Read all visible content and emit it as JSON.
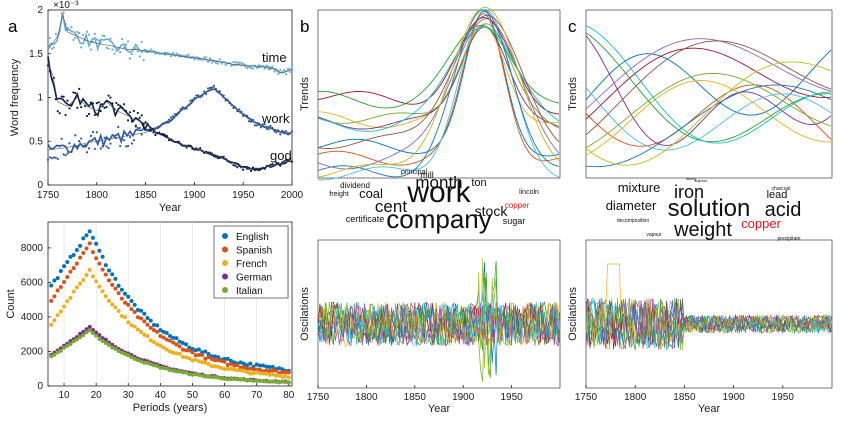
{
  "chart_data": [
    {
      "id": "a-top",
      "type": "line",
      "panel_label": "a",
      "xlabel": "Year",
      "ylabel": "Word frequency",
      "y_exponent": "×10⁻³",
      "xlim": [
        1750,
        2000
      ],
      "ylim": [
        0,
        2
      ],
      "xticks": [
        1750,
        1800,
        1850,
        1900,
        1950,
        2000
      ],
      "yticks": [
        0,
        0.5,
        1,
        1.5,
        2
      ],
      "ytick_labels": [
        "0",
        "0.5",
        "1",
        "1.5",
        "2"
      ],
      "series": [
        {
          "name": "time",
          "color": "#6baed6",
          "x": [
            1750,
            1760,
            1765,
            1770,
            1780,
            1790,
            1800,
            1810,
            1820,
            1830,
            1840,
            1850,
            1860,
            1870,
            1880,
            1890,
            1900,
            1910,
            1920,
            1930,
            1940,
            1950,
            1960,
            1970,
            1980,
            1990,
            2000
          ],
          "y": [
            1.55,
            1.7,
            1.95,
            1.75,
            1.7,
            1.65,
            1.62,
            1.6,
            1.58,
            1.55,
            1.55,
            1.53,
            1.52,
            1.5,
            1.48,
            1.47,
            1.45,
            1.44,
            1.42,
            1.4,
            1.38,
            1.37,
            1.36,
            1.35,
            1.33,
            1.28,
            1.32
          ]
        },
        {
          "name": "work",
          "color": "#2c5aa0",
          "x": [
            1750,
            1770,
            1790,
            1810,
            1830,
            1850,
            1870,
            1880,
            1890,
            1900,
            1910,
            1920,
            1930,
            1940,
            1950,
            1960,
            1970,
            1980,
            1990,
            2000
          ],
          "y": [
            0.4,
            0.43,
            0.48,
            0.52,
            0.56,
            0.6,
            0.7,
            0.78,
            0.88,
            0.98,
            1.05,
            1.12,
            1.0,
            0.9,
            0.8,
            0.72,
            0.68,
            0.64,
            0.6,
            0.6
          ]
        },
        {
          "name": "god",
          "color": "#0d1f4a",
          "x": [
            1750,
            1755,
            1760,
            1770,
            1780,
            1790,
            1800,
            1810,
            1820,
            1830,
            1840,
            1850,
            1860,
            1870,
            1880,
            1890,
            1900,
            1910,
            1920,
            1930,
            1940,
            1950,
            1960,
            1970,
            1980,
            1990,
            2000
          ],
          "y": [
            1.4,
            1.25,
            0.95,
            0.9,
            1.0,
            0.9,
            0.85,
            0.95,
            0.85,
            0.8,
            0.75,
            0.7,
            0.6,
            0.55,
            0.5,
            0.45,
            0.42,
            0.38,
            0.35,
            0.3,
            0.25,
            0.2,
            0.18,
            0.2,
            0.22,
            0.25,
            0.28
          ]
        }
      ]
    },
    {
      "id": "a-bottom",
      "type": "scatter",
      "xlabel": "Periods (years)",
      "ylabel": "Count",
      "xlim": [
        5,
        81
      ],
      "ylim": [
        0,
        9500
      ],
      "xticks": [
        10,
        20,
        30,
        40,
        50,
        60,
        70,
        80
      ],
      "yticks": [
        0,
        2000,
        4000,
        6000,
        8000
      ],
      "legend_position": "top-right",
      "series": [
        {
          "name": "English",
          "color": "#0072bd",
          "peak": 9000,
          "start": 5800,
          "end": 600
        },
        {
          "name": "Spanish",
          "color": "#d95319",
          "peak": 8200,
          "start": 5000,
          "end": 450
        },
        {
          "name": "French",
          "color": "#edb120",
          "peak": 6700,
          "start": 3600,
          "end": 300
        },
        {
          "name": "German",
          "color": "#7e2f8e",
          "peak": 3400,
          "start": 1800,
          "end": 100
        },
        {
          "name": "Italian",
          "color": "#77ac30",
          "peak": 3200,
          "start": 1700,
          "end": 80
        }
      ],
      "peak_x": 18
    },
    {
      "id": "b",
      "type": "line",
      "panel_label": "b",
      "xlabel": "Year",
      "ylabel_top": "Trends",
      "ylabel_bottom": "Oscilations",
      "xlim": [
        1750,
        2000
      ],
      "xticks": [
        1750,
        1800,
        1850,
        1900,
        1950
      ]
    },
    {
      "id": "c",
      "type": "line",
      "panel_label": "c",
      "xlabel": "Year",
      "ylabel_top": "Trends",
      "ylabel_bottom": "Oscilations",
      "xlim": [
        1750,
        2000
      ],
      "xticks": [
        1750,
        1800,
        1850,
        1900,
        1950
      ]
    }
  ],
  "wordcloud_b": [
    {
      "text": "work",
      "size": 30,
      "color": "#111"
    },
    {
      "text": "company",
      "size": 26,
      "color": "#111"
    },
    {
      "text": "month",
      "size": 17,
      "color": "#111"
    },
    {
      "text": "cent",
      "size": 17,
      "color": "#111"
    },
    {
      "text": "stock",
      "size": 14,
      "color": "#111"
    },
    {
      "text": "coal",
      "size": 13,
      "color": "#111"
    },
    {
      "text": "ton",
      "size": 11,
      "color": "#111"
    },
    {
      "text": "mill",
      "size": 9,
      "color": "#111"
    },
    {
      "text": "sugar",
      "size": 9,
      "color": "#111"
    },
    {
      "text": "certificate",
      "size": 9,
      "color": "#111"
    },
    {
      "text": "dividend",
      "size": 8,
      "color": "#111"
    },
    {
      "text": "freight",
      "size": 7,
      "color": "#111"
    },
    {
      "text": "principal",
      "size": 7,
      "color": "#111"
    },
    {
      "text": "lincoln",
      "size": 7,
      "color": "#111"
    },
    {
      "text": "copper",
      "size": 8,
      "color": "#e31a1c"
    }
  ],
  "wordcloud_c": [
    {
      "text": "solution",
      "size": 24,
      "color": "#111"
    },
    {
      "text": "acid",
      "size": 20,
      "color": "#111"
    },
    {
      "text": "weight",
      "size": 20,
      "color": "#111"
    },
    {
      "text": "iron",
      "size": 18,
      "color": "#111"
    },
    {
      "text": "mixture",
      "size": 13,
      "color": "#111"
    },
    {
      "text": "diameter",
      "size": 13,
      "color": "#111"
    },
    {
      "text": "copper",
      "size": 13,
      "color": "#e31a1c"
    },
    {
      "text": "lead",
      "size": 11,
      "color": "#111"
    },
    {
      "text": "decomposition",
      "size": 5,
      "color": "#111"
    },
    {
      "text": "vapour",
      "size": 5,
      "color": "#111"
    },
    {
      "text": "charcoal",
      "size": 5,
      "color": "#111"
    },
    {
      "text": "precipitate",
      "size": 5,
      "color": "#111"
    },
    {
      "text": "fusing",
      "size": 4,
      "color": "#111"
    },
    {
      "text": "sulphur",
      "size": 4,
      "color": "#111"
    }
  ],
  "palette": [
    "#0072bd",
    "#d95319",
    "#edb120",
    "#7e2f8e",
    "#77ac30",
    "#4dbeee",
    "#a2142f",
    "#1f77b4",
    "#2ca02c",
    "#17becf",
    "#9467bd",
    "#8c564b",
    "#bcbd22"
  ]
}
